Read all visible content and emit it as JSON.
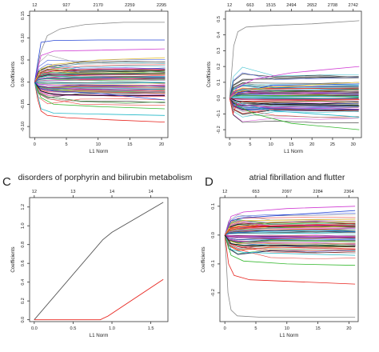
{
  "figure": {
    "panels": [
      {
        "letter": "",
        "title": ""
      },
      {
        "letter": "",
        "title": ""
      },
      {
        "letter": "C",
        "title": "disorders of porphyrin and bilirubin metabolism"
      },
      {
        "letter": "D",
        "title": "atrial fibrillation and flutter"
      }
    ]
  },
  "chart_data": [
    {
      "type": "line",
      "title": "",
      "xlabel": "L1 Norm",
      "ylabel": "Coefficients",
      "xlim": [
        -0.8,
        21
      ],
      "ylim": [
        -0.125,
        0.16
      ],
      "x_ticks": [
        0,
        5,
        10,
        15,
        20
      ],
      "x_tick_labels": [
        "0",
        "5",
        "10",
        "15",
        "20"
      ],
      "y_ticks": [
        -0.1,
        -0.05,
        0,
        0.05,
        0.1,
        0.15
      ],
      "y_tick_labels": [
        "-0.10",
        "-0.05",
        "0.00",
        "0.05",
        "0.10",
        "0.15"
      ],
      "top_ticks": [
        0,
        5,
        10,
        15,
        20
      ],
      "top_labels": [
        "12",
        "927",
        "2170",
        "2259",
        "2295"
      ],
      "colors": [
        "#000000",
        "#e8251f",
        "#35b82f",
        "#2a49d6",
        "#21b8c8",
        "#d03ad3",
        "#e6c23a",
        "#8a8a8a"
      ],
      "series": [
        {
          "color": "#8a8a8a",
          "values": [
            [
              0,
              0
            ],
            [
              0.5,
              0.04
            ],
            [
              1,
              0.07
            ],
            [
              2,
              0.105
            ],
            [
              4,
              0.12
            ],
            [
              8,
              0.13
            ],
            [
              14,
              0.135
            ],
            [
              20.5,
              0.135
            ]
          ]
        },
        {
          "color": "#e8251f",
          "values": [
            [
              0,
              0
            ],
            [
              0.5,
              -0.04
            ],
            [
              1,
              -0.065
            ],
            [
              2,
              -0.075
            ],
            [
              5,
              -0.08
            ],
            [
              12,
              -0.085
            ],
            [
              20.5,
              -0.09
            ]
          ]
        },
        {
          "color": "#d03ad3",
          "values": [
            [
              0,
              0
            ],
            [
              1,
              0.06
            ],
            [
              3,
              0.07
            ],
            [
              10,
              0.072
            ],
            [
              20.5,
              0.075
            ]
          ]
        },
        {
          "color": "#2a49d6",
          "values": [
            [
              0,
              0
            ],
            [
              1,
              0.09
            ],
            [
              3,
              0.094
            ],
            [
              10,
              0.095
            ],
            [
              20.5,
              0.095
            ]
          ]
        },
        {
          "color": "#35b82f",
          "values": [
            [
              0,
              0
            ],
            [
              1,
              -0.035
            ],
            [
              3,
              -0.05
            ],
            [
              10,
              -0.055
            ],
            [
              20.5,
              -0.06
            ]
          ]
        },
        {
          "color": "#21b8c8",
          "values": [
            [
              0,
              0
            ],
            [
              1,
              -0.06
            ],
            [
              3,
              -0.07
            ],
            [
              10,
              -0.072
            ],
            [
              20.5,
              -0.075
            ]
          ]
        },
        {
          "color": "#e6c23a",
          "values": [
            [
              0,
              0
            ],
            [
              1,
              0.03
            ],
            [
              3,
              0.04
            ],
            [
              10,
              0.05
            ],
            [
              20.5,
              0.055
            ]
          ]
        },
        {
          "color": "#000000",
          "values": [
            [
              0,
              0
            ],
            [
              1,
              -0.02
            ],
            [
              3,
              -0.028
            ],
            [
              10,
              -0.03
            ],
            [
              20.5,
              -0.03
            ]
          ]
        },
        {
          "color": "#2a49d6",
          "values": [
            [
              0,
              0
            ],
            [
              1,
              -0.015
            ],
            [
              3,
              -0.02
            ],
            [
              10,
              -0.025
            ],
            [
              20.5,
              -0.04
            ]
          ]
        },
        {
          "color": "#e8251f",
          "values": [
            [
              0,
              0
            ],
            [
              1,
              0.02
            ],
            [
              3,
              0.025
            ],
            [
              10,
              0.03
            ],
            [
              20.5,
              0.028
            ]
          ]
        }
      ]
    },
    {
      "type": "line",
      "title": "",
      "xlabel": "L1 Norm",
      "ylabel": "Coefficients",
      "xlim": [
        -1,
        32
      ],
      "ylim": [
        -0.25,
        0.55
      ],
      "x_ticks": [
        0,
        5,
        10,
        15,
        20,
        25,
        30
      ],
      "x_tick_labels": [
        "0",
        "5",
        "10",
        "15",
        "20",
        "25",
        "30"
      ],
      "y_ticks": [
        -0.2,
        -0.1,
        0,
        0.1,
        0.2,
        0.3,
        0.4,
        0.5
      ],
      "y_tick_labels": [
        "-0.2",
        "-0.1",
        "0.0",
        "0.1",
        "0.2",
        "0.3",
        "0.4",
        "0.5"
      ],
      "top_ticks": [
        0,
        5,
        10,
        15,
        20,
        25,
        30
      ],
      "top_labels": [
        "12",
        "663",
        "1515",
        "2494",
        "2652",
        "2708",
        "2742"
      ],
      "colors": [
        "#000000",
        "#e8251f",
        "#35b82f",
        "#2a49d6",
        "#21b8c8",
        "#d03ad3",
        "#e6c23a",
        "#8a8a8a"
      ],
      "series": [
        {
          "color": "#8a8a8a",
          "values": [
            [
              0,
              0
            ],
            [
              1,
              0.33
            ],
            [
              2,
              0.42
            ],
            [
              4,
              0.45
            ],
            [
              10,
              0.46
            ],
            [
              20,
              0.47
            ],
            [
              31.5,
              0.49
            ]
          ]
        },
        {
          "color": "#d03ad3",
          "values": [
            [
              0,
              0
            ],
            [
              2,
              0.07
            ],
            [
              6,
              0.12
            ],
            [
              15,
              0.16
            ],
            [
              31.5,
              0.2
            ]
          ]
        },
        {
          "color": "#35b82f",
          "values": [
            [
              0,
              0
            ],
            [
              2,
              -0.05
            ],
            [
              6,
              -0.1
            ],
            [
              15,
              -0.16
            ],
            [
              31.5,
              -0.2
            ]
          ]
        },
        {
          "color": "#e8251f",
          "values": [
            [
              0,
              0
            ],
            [
              0.8,
              -0.1
            ],
            [
              1.5,
              -0.05
            ],
            [
              3,
              -0.02
            ],
            [
              31.5,
              -0.01
            ]
          ]
        },
        {
          "color": "#2a49d6",
          "values": [
            [
              0,
              0
            ],
            [
              2,
              0.03
            ],
            [
              10,
              0.08
            ],
            [
              31.5,
              0.09
            ]
          ]
        },
        {
          "color": "#21b8c8",
          "values": [
            [
              0,
              0
            ],
            [
              2,
              -0.03
            ],
            [
              10,
              -0.08
            ],
            [
              31.5,
              -0.12
            ]
          ]
        },
        {
          "color": "#e6c23a",
          "values": [
            [
              0,
              0
            ],
            [
              2,
              0.04
            ],
            [
              10,
              0.07
            ],
            [
              31.5,
              0.1
            ]
          ]
        },
        {
          "color": "#000000",
          "values": [
            [
              0,
              0
            ],
            [
              2,
              -0.02
            ],
            [
              10,
              -0.04
            ],
            [
              31.5,
              -0.05
            ]
          ]
        },
        {
          "color": "#d03ad3",
          "values": [
            [
              0,
              0
            ],
            [
              2,
              -0.04
            ],
            [
              10,
              -0.06
            ],
            [
              31.5,
              -0.07
            ]
          ]
        }
      ]
    },
    {
      "type": "line",
      "title": "disorders of porphyrin and bilirubin metabolism",
      "xlabel": "L1 Norm",
      "ylabel": "Coefficients",
      "xlim": [
        -0.06,
        1.72
      ],
      "ylim": [
        -0.02,
        1.3
      ],
      "x_ticks": [
        0,
        0.5,
        1,
        1.5
      ],
      "x_tick_labels": [
        "0.0",
        "0.5",
        "1.0",
        "1.5"
      ],
      "y_ticks": [
        0,
        0.2,
        0.4,
        0.6,
        0.8,
        1,
        1.2
      ],
      "y_tick_labels": [
        "0.0",
        "0.2",
        "0.4",
        "0.6",
        "0.8",
        "1.0",
        "1.2"
      ],
      "top_ticks": [
        0,
        0.5,
        1,
        1.5
      ],
      "top_labels": [
        "12",
        "13",
        "14",
        "14"
      ],
      "colors": [
        "#000000",
        "#e8251f"
      ],
      "series": [
        {
          "color": "#555555",
          "values": [
            [
              0,
              0
            ],
            [
              0.88,
              0.85
            ],
            [
              1,
              0.93
            ],
            [
              1.66,
              1.25
            ]
          ]
        },
        {
          "color": "#e8251f",
          "values": [
            [
              0,
              0
            ],
            [
              0.85,
              0
            ],
            [
              0.95,
              0.04
            ],
            [
              1.66,
              0.43
            ]
          ]
        }
      ]
    },
    {
      "type": "line",
      "title": "atrial fibrillation and flutter",
      "xlabel": "L1 Norm",
      "ylabel": "Coefficients",
      "xlim": [
        -0.8,
        21.5
      ],
      "ylim": [
        -0.3,
        0.13
      ],
      "x_ticks": [
        0,
        5,
        10,
        15,
        20
      ],
      "x_tick_labels": [
        "0",
        "5",
        "10",
        "15",
        "20"
      ],
      "y_ticks": [
        -0.2,
        -0.1,
        0,
        0.1
      ],
      "y_tick_labels": [
        "-0.2",
        "-0.1",
        "0.0",
        "0.1"
      ],
      "top_ticks": [
        0,
        5,
        10,
        15,
        20
      ],
      "top_labels": [
        "12",
        "653",
        "2097",
        "2284",
        "2364"
      ],
      "colors": [
        "#000000",
        "#e8251f",
        "#35b82f",
        "#2a49d6",
        "#21b8c8",
        "#d03ad3",
        "#e6c23a",
        "#8a8a8a"
      ],
      "series": [
        {
          "color": "#8a8a8a",
          "values": [
            [
              0,
              0
            ],
            [
              0.5,
              -0.2
            ],
            [
              1,
              -0.26
            ],
            [
              2,
              -0.28
            ],
            [
              6,
              -0.285
            ],
            [
              21,
              -0.285
            ]
          ]
        },
        {
          "color": "#e8251f",
          "values": [
            [
              0,
              0
            ],
            [
              0.6,
              -0.1
            ],
            [
              1.5,
              -0.14
            ],
            [
              4,
              -0.155
            ],
            [
              21,
              -0.17
            ]
          ]
        },
        {
          "color": "#d03ad3",
          "values": [
            [
              0,
              0
            ],
            [
              1,
              0.065
            ],
            [
              3,
              0.08
            ],
            [
              10,
              0.092
            ],
            [
              21,
              0.1
            ]
          ]
        },
        {
          "color": "#2a49d6",
          "values": [
            [
              0,
              0
            ],
            [
              1,
              0.05
            ],
            [
              3,
              0.06
            ],
            [
              21,
              0.085
            ]
          ]
        },
        {
          "color": "#35b82f",
          "values": [
            [
              0,
              0
            ],
            [
              1,
              -0.07
            ],
            [
              3,
              -0.09
            ],
            [
              10,
              -0.1
            ],
            [
              21,
              -0.105
            ]
          ]
        },
        {
          "color": "#21b8c8",
          "values": [
            [
              0,
              0
            ],
            [
              1,
              -0.05
            ],
            [
              3,
              -0.06
            ],
            [
              21,
              -0.07
            ]
          ]
        },
        {
          "color": "#e6c23a",
          "values": [
            [
              0,
              0
            ],
            [
              1,
              0.04
            ],
            [
              3,
              0.05
            ],
            [
              21,
              0.055
            ]
          ]
        },
        {
          "color": "#000000",
          "values": [
            [
              0,
              0
            ],
            [
              1,
              -0.03
            ],
            [
              3,
              -0.035
            ],
            [
              21,
              -0.04
            ]
          ]
        },
        {
          "color": "#e8251f",
          "values": [
            [
              0,
              0
            ],
            [
              1,
              0.025
            ],
            [
              3,
              0.03
            ],
            [
              21,
              0.04
            ]
          ]
        }
      ]
    }
  ]
}
